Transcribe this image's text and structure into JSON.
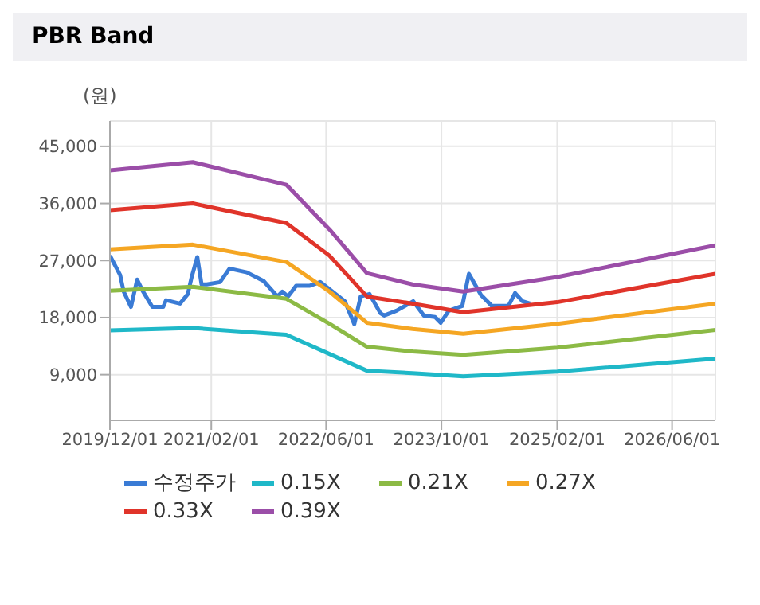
{
  "chart_data": {
    "type": "line",
    "title": "PBR Band",
    "ylabel": "(원)",
    "xlim": [
      "2019-12-01",
      "2026-12-01"
    ],
    "xticks": [
      {
        "value": "2019-12-01",
        "label": "2019/12/01"
      },
      {
        "value": "2021-02-01",
        "label": "2021/02/01"
      },
      {
        "value": "2022-06-01",
        "label": "2022/06/01"
      },
      {
        "value": "2023-10-01",
        "label": "2023/10/01"
      },
      {
        "value": "2025-02-01",
        "label": "2025/02/01"
      },
      {
        "value": "2026-06-01",
        "label": "2026/06/01"
      }
    ],
    "ylim": [
      1800,
      49000
    ],
    "yticks": [
      {
        "value": 9000,
        "label": "9,000"
      },
      {
        "value": 18000,
        "label": "18,000"
      },
      {
        "value": 27000,
        "label": "27,000"
      },
      {
        "value": 36000,
        "label": "36,000"
      },
      {
        "value": 45000,
        "label": "45,000"
      }
    ],
    "grid": true,
    "legend": "bottom",
    "marker": "none",
    "line_style": "solid",
    "series": [
      {
        "name": "수정주가",
        "color": "#3a7bd5",
        "x": [
          "2019-12-01",
          "2020-01-13",
          "2020-01-28",
          "2020-02-28",
          "2020-03-25",
          "2020-04-19",
          "2020-05-28",
          "2020-07-13",
          "2020-07-25",
          "2020-09-22",
          "2020-10-25",
          "2020-11-10",
          "2020-12-04",
          "2020-12-22",
          "2021-01-13",
          "2021-03-10",
          "2021-04-19",
          "2021-07-01",
          "2021-09-10",
          "2021-11-07",
          "2021-11-28",
          "2021-12-22",
          "2022-01-25",
          "2022-03-22",
          "2022-05-07",
          "2022-08-19",
          "2022-09-28",
          "2022-10-25",
          "2022-12-01",
          "2023-01-16",
          "2023-02-01",
          "2023-03-25",
          "2023-06-04",
          "2023-07-19",
          "2023-09-04",
          "2023-09-28",
          "2023-11-01",
          "2023-12-28",
          "2024-01-25",
          "2024-03-16",
          "2024-05-01",
          "2024-07-10",
          "2024-08-07",
          "2024-09-07",
          "2024-10-10"
        ],
        "values": [
          27770,
          24730,
          22100,
          19680,
          23980,
          22100,
          19680,
          19680,
          20740,
          20200,
          21720,
          24360,
          27540,
          23230,
          23230,
          23600,
          25730,
          25130,
          23770,
          21330,
          22100,
          21330,
          23000,
          23000,
          23600,
          20580,
          16960,
          21330,
          21720,
          18700,
          18320,
          19070,
          20580,
          18320,
          18090,
          17190,
          19070,
          19830,
          24900,
          21560,
          19830,
          19830,
          21880,
          20580,
          20200
        ]
      },
      {
        "name": "0.15X",
        "color": "#1fb8c8",
        "x": [
          "2019-12-01",
          "2020-11-15",
          "2021-12-15",
          "2022-06-15",
          "2022-11-20",
          "2023-06-01",
          "2024-01-01",
          "2025-02-01",
          "2026-12-01"
        ],
        "values": [
          15980,
          16350,
          15300,
          12270,
          9630,
          9250,
          8730,
          9480,
          11520
        ]
      },
      {
        "name": "0.21X",
        "color": "#8cba45",
        "x": [
          "2019-12-01",
          "2020-11-15",
          "2021-12-15",
          "2022-06-15",
          "2022-11-20",
          "2023-06-01",
          "2024-01-01",
          "2025-02-01",
          "2026-12-01"
        ],
        "values": [
          22240,
          22850,
          20970,
          17030,
          13400,
          12650,
          12130,
          13260,
          16050
        ]
      },
      {
        "name": "0.27X",
        "color": "#f5a623",
        "x": [
          "2019-12-01",
          "2020-11-15",
          "2021-12-15",
          "2022-06-15",
          "2022-11-20",
          "2023-06-01",
          "2024-01-01",
          "2025-02-01",
          "2026-12-01"
        ],
        "values": [
          28750,
          29500,
          26770,
          22100,
          17190,
          16200,
          15440,
          17030,
          20200
        ]
      },
      {
        "name": "0.33X",
        "color": "#e0342a",
        "x": [
          "2019-12-01",
          "2020-11-15",
          "2021-12-15",
          "2022-06-15",
          "2022-11-20",
          "2023-06-01",
          "2024-01-01",
          "2025-02-01",
          "2026-12-01"
        ],
        "values": [
          34950,
          36000,
          32900,
          27770,
          21330,
          20200,
          18840,
          20430,
          24900
        ]
      },
      {
        "name": "0.39X",
        "color": "#9b4ea8",
        "x": [
          "2019-12-01",
          "2020-11-15",
          "2021-12-15",
          "2022-06-15",
          "2022-11-20",
          "2023-06-01",
          "2024-01-01",
          "2025-02-01",
          "2026-12-01"
        ],
        "values": [
          41200,
          42500,
          38950,
          31900,
          25000,
          23230,
          22100,
          24400,
          29400
        ]
      }
    ]
  }
}
